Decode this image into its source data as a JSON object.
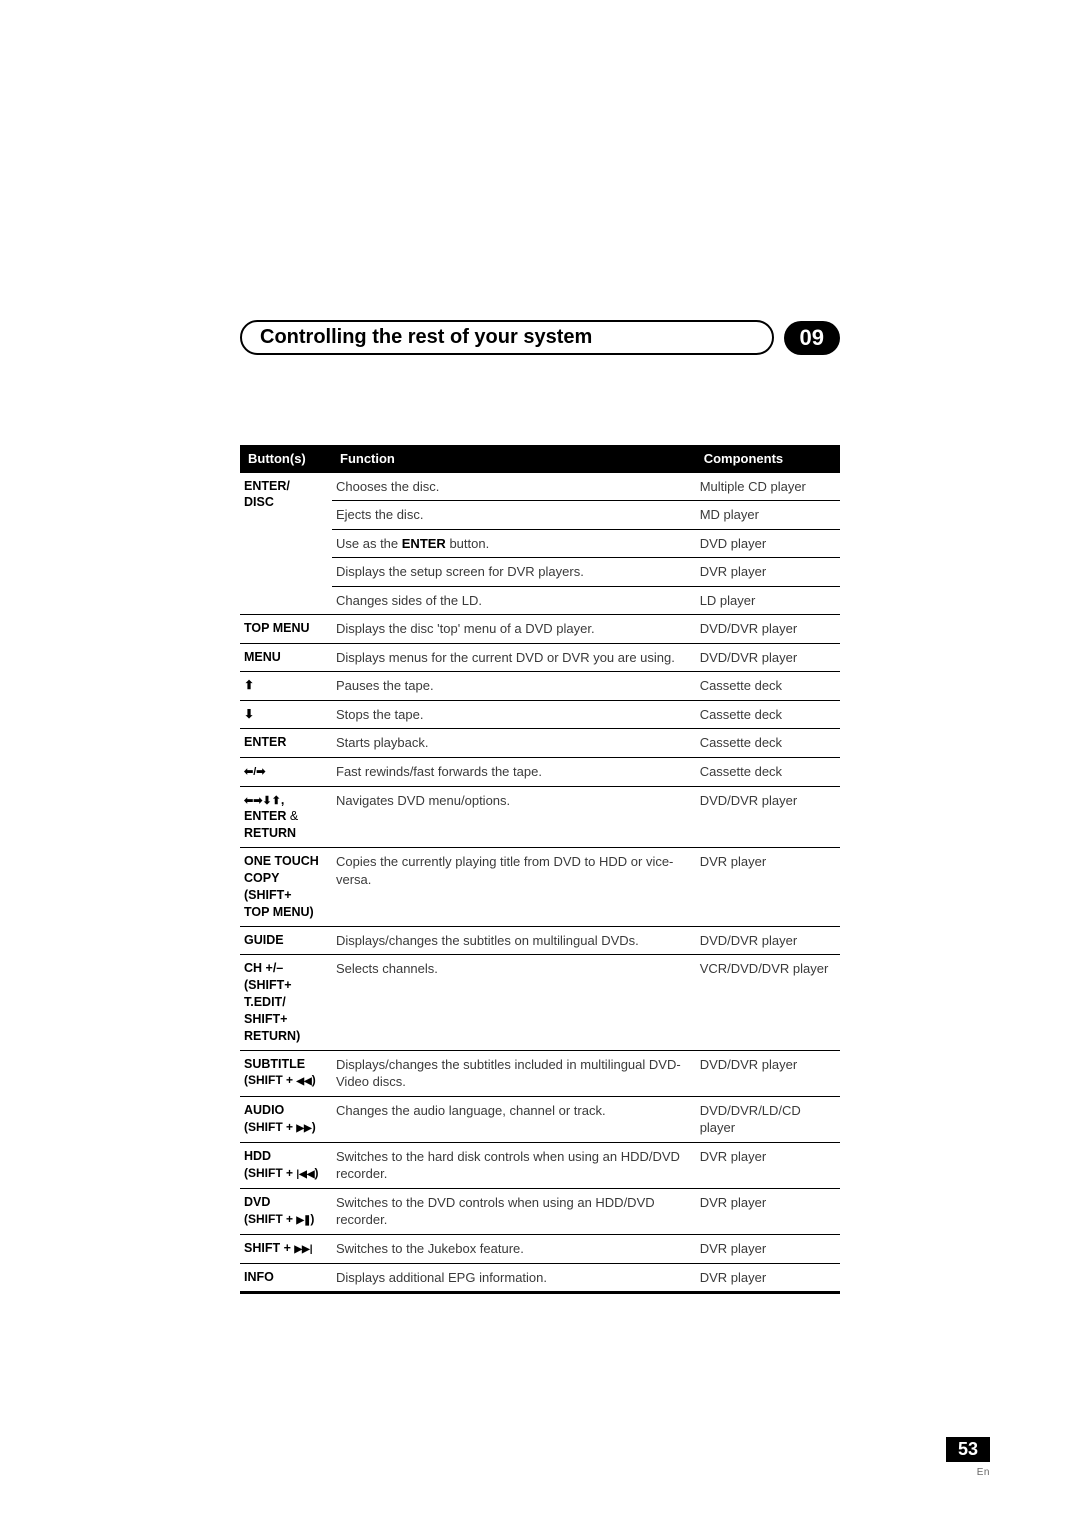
{
  "header": {
    "title": "Controlling the rest of your system",
    "chapter": "09"
  },
  "table": {
    "columns": [
      "Button(s)",
      "Function",
      "Components"
    ],
    "col_widths_pct": [
      16,
      54,
      30
    ]
  },
  "rows": {
    "r0": {
      "btn_html": "ENTER/<br>DISC",
      "rowspan": 5,
      "func": "Chooses the disc.",
      "comp": "Multiple CD player"
    },
    "r1": {
      "func": "Ejects the disc.",
      "comp": "MD player"
    },
    "r2": {
      "func_html": "Use as the <span class=\"bold\">ENTER</span> button.",
      "comp": "DVD player"
    },
    "r3": {
      "func": "Displays the setup screen for DVR players.",
      "comp": "DVR player"
    },
    "r4": {
      "func": "Changes sides of the LD.",
      "comp": "LD player"
    },
    "r5": {
      "btn": "TOP MENU",
      "func": "Displays the disc 'top' menu of a DVD player.",
      "comp": "DVD/DVR player"
    },
    "r6": {
      "btn": "MENU",
      "func": "Displays menus for the current DVD or DVR you are using.",
      "comp": "DVD/DVR player"
    },
    "r7": {
      "btn_icon": "arrow-up",
      "func": "Pauses the tape.",
      "comp": "Cassette deck"
    },
    "r8": {
      "btn_icon": "arrow-down",
      "func": "Stops the tape.",
      "comp": "Cassette deck"
    },
    "r9": {
      "btn": "ENTER",
      "func": "Starts playback.",
      "comp": "Cassette deck"
    },
    "r10": {
      "btn_icon": "arrow-lr",
      "func": "Fast rewinds/fast forwards the tape.",
      "comp": "Cassette deck"
    },
    "r11": {
      "btn_html": "<span class=\"arrows-all\"></span>,<br>ENTER <span class=\"nb\">&amp;</span><br>RETURN",
      "func": "Navigates DVD menu/options.",
      "comp": "DVD/DVR player"
    },
    "r12": {
      "btn_html": "ONE TOUCH<br>COPY (SHIFT+<br>TOP MENU)",
      "func": "Copies the currently playing title from DVD to HDD or vice-versa.",
      "comp": "DVR player"
    },
    "r13": {
      "btn": "GUIDE",
      "func": "Displays/changes the subtitles on multilingual DVDs.",
      "comp": "DVD/DVR player"
    },
    "r14": {
      "btn_html": "CH +/–<br>(SHIFT+<br>T.EDIT/<br>SHIFT+<br>RETURN)",
      "func": "Selects channels.",
      "comp": "VCR/DVD/DVR player"
    },
    "r15": {
      "btn_html": "SUBTITLE<br><span class=\"sub\">(SHIFT + <span class=\"rw2\"></span>)</span>",
      "func": "Displays/changes the subtitles included in multilingual DVD-Video discs.",
      "comp": "DVD/DVR player"
    },
    "r16": {
      "btn_html": "AUDIO<br><span class=\"sub\">(SHIFT + <span class=\"ff2\"></span>)</span>",
      "func": "Changes the audio language, channel or track.",
      "comp": "DVD/DVR/LD/CD player"
    },
    "r17": {
      "btn_html": "HDD<br><span class=\"sub\">(SHIFT + <span class=\"skipb\"></span>)</span>",
      "func": "Switches to the hard disk controls when using an HDD/DVD recorder.",
      "comp": "DVR player"
    },
    "r18": {
      "btn_html": "DVD<br><span class=\"sub\">(SHIFT + <span class=\"pause2\"></span>)</span>",
      "func": "Switches to the DVD controls when using an HDD/DVD recorder.",
      "comp": "DVR player"
    },
    "r19": {
      "btn_html": "SHIFT + <span class=\"skipf\"></span>",
      "func": "Switches to the Jukebox feature.",
      "comp": "DVR player"
    },
    "r20": {
      "btn": "INFO",
      "func": "Displays additional EPG information.",
      "comp": "DVR player",
      "last": true
    }
  },
  "footer": {
    "page": "53",
    "lang": "En"
  },
  "colors": {
    "header_bg": "#000000",
    "header_fg": "#ffffff",
    "text": "#3a3a3a",
    "rule": "#000000"
  }
}
